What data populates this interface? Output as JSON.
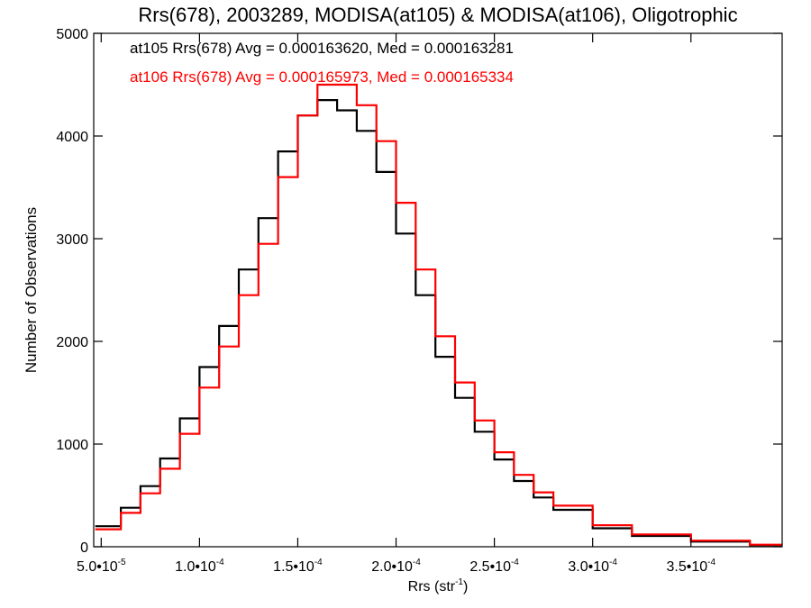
{
  "chart_data": {
    "type": "line",
    "title": "Rrs(678), 2003289, MODISA(at105) & MODISA(at106), Oligotrophic",
    "xlabel_main": "Rrs (str",
    "xlabel_sup": "-1",
    "xlabel_tail": ")",
    "ylabel": "Number of Observations",
    "xlim": [
      4.62e-05,
      0.0003964
    ],
    "ylim": [
      0,
      5000
    ],
    "grid": false,
    "legend_position": "top-left",
    "x_ticks": [
      {
        "value": 5e-05,
        "mantissa": "5.0",
        "exp": "-5"
      },
      {
        "value": 0.0001,
        "mantissa": "1.0",
        "exp": "-4"
      },
      {
        "value": 0.00015,
        "mantissa": "1.5",
        "exp": "-4"
      },
      {
        "value": 0.0002,
        "mantissa": "2.0",
        "exp": "-4"
      },
      {
        "value": 0.00025,
        "mantissa": "2.5",
        "exp": "-4"
      },
      {
        "value": 0.0003,
        "mantissa": "3.0",
        "exp": "-4"
      },
      {
        "value": 0.00035,
        "mantissa": "3.5",
        "exp": "-4"
      }
    ],
    "y_ticks": [
      0,
      1000,
      2000,
      3000,
      4000,
      5000
    ],
    "series": [
      {
        "name": "at105",
        "color": "#000000",
        "label": "at105 Rrs(678) Avg = 0.000163620, Med = 0.000163281",
        "x": [
          4.7e-05,
          6e-05,
          7e-05,
          8e-05,
          9e-05,
          0.0001,
          0.00011,
          0.00012,
          0.00013,
          0.00014,
          0.00015,
          0.00016,
          0.00017,
          0.00018,
          0.00019,
          0.0002,
          0.00021,
          0.00022,
          0.00023,
          0.00024,
          0.00025,
          0.00026,
          0.00027,
          0.00028,
          0.0003,
          0.00032,
          0.00035,
          0.00038,
          0.000396
        ],
        "y": [
          200,
          380,
          590,
          860,
          1250,
          1750,
          2150,
          2700,
          3200,
          3850,
          4200,
          4350,
          4250,
          4050,
          3650,
          3050,
          2450,
          1850,
          1450,
          1120,
          850,
          640,
          480,
          360,
          180,
          105,
          50,
          15,
          10
        ]
      },
      {
        "name": "at106",
        "color": "#ff0000",
        "label": "at106 Rrs(678) Avg = 0.000165973, Med = 0.000165334",
        "x": [
          4.7e-05,
          6e-05,
          7e-05,
          8e-05,
          9e-05,
          0.0001,
          0.00011,
          0.00012,
          0.00013,
          0.00014,
          0.00015,
          0.00016,
          0.00017,
          0.00018,
          0.00019,
          0.0002,
          0.00021,
          0.00022,
          0.00023,
          0.00024,
          0.00025,
          0.00026,
          0.00027,
          0.00028,
          0.0003,
          0.00032,
          0.00035,
          0.00038,
          0.000396
        ],
        "y": [
          170,
          330,
          520,
          760,
          1100,
          1550,
          1950,
          2450,
          2950,
          3600,
          4200,
          4500,
          4500,
          4300,
          3950,
          3350,
          2700,
          2050,
          1600,
          1230,
          920,
          700,
          530,
          400,
          210,
          120,
          60,
          20,
          10
        ]
      }
    ]
  }
}
